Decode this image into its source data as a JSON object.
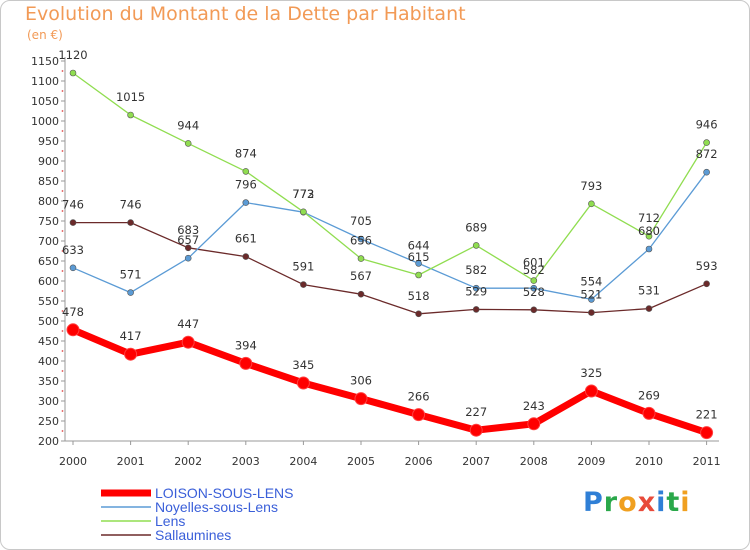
{
  "chart_data": {
    "type": "line",
    "title": "Evolution du Montant de la Dette par Habitant",
    "subtitle": "(en €)",
    "x": [
      "2000",
      "2001",
      "2002",
      "2003",
      "2004",
      "2005",
      "2006",
      "2007",
      "2008",
      "2009",
      "2010",
      "2011"
    ],
    "ylim": [
      200,
      1150
    ],
    "yticks": [
      200,
      250,
      300,
      350,
      400,
      450,
      500,
      550,
      600,
      650,
      700,
      750,
      800,
      850,
      900,
      950,
      1000,
      1050,
      1100,
      1150
    ],
    "grid": false,
    "legend_position": "bottom-left",
    "series": [
      {
        "name": "LOISON-SOUS-LENS",
        "color": "#ff0000",
        "values": [
          478,
          417,
          447,
          394,
          345,
          306,
          266,
          227,
          243,
          325,
          269,
          221
        ]
      },
      {
        "name": "Noyelles-sous-Lens",
        "color": "#5b9bd5",
        "values": [
          633,
          571,
          657,
          796,
          772,
          705,
          644,
          582,
          582,
          554,
          680,
          872
        ]
      },
      {
        "name": "Lens",
        "color": "#90dd50",
        "values": [
          1120,
          1015,
          944,
          874,
          773,
          656,
          615,
          689,
          601,
          793,
          712,
          946
        ]
      },
      {
        "name": "Sallaumines",
        "color": "#6b2a2a",
        "values": [
          746,
          746,
          683,
          661,
          591,
          567,
          518,
          529,
          528,
          521,
          531,
          593
        ]
      }
    ]
  },
  "logo": {
    "letters": [
      "P",
      "r",
      "o",
      "x",
      "i",
      "t",
      "i"
    ]
  }
}
